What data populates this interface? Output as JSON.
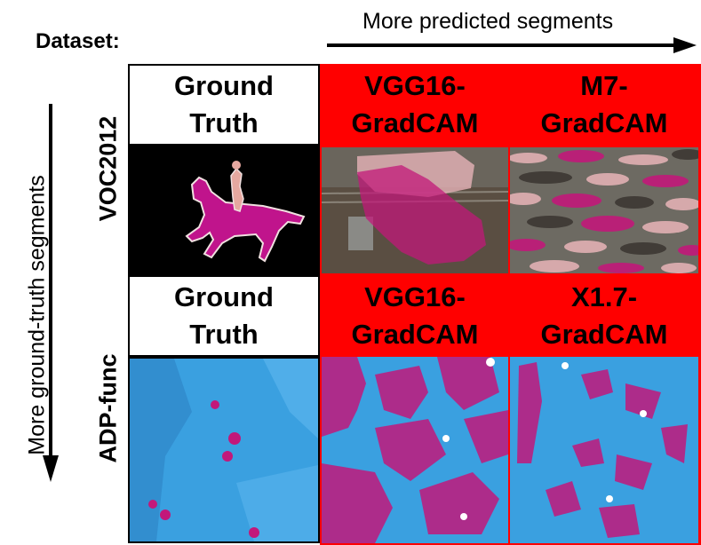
{
  "header": {
    "predicted_axis_label": "More predicted segments",
    "dataset_label": "Dataset:",
    "ground_truth_axis_label": "More ground-truth segments"
  },
  "rows": [
    {
      "dataset": "VOC2012",
      "ground_truth_line1": "Ground",
      "ground_truth_line2": "Truth",
      "method1_line1": "VGG16-",
      "method1_line2": "GradCAM",
      "method2_line1": "M7-",
      "method2_line2": "GradCAM"
    },
    {
      "dataset": "ADP-func",
      "ground_truth_line1": "Ground",
      "ground_truth_line2": "Truth",
      "method1_line1": "VGG16-",
      "method1_line2": "GradCAM",
      "method2_line1": "X1.7-",
      "method2_line2": "GradCAM"
    }
  ],
  "colors": {
    "highlight_red": "#ff0000",
    "segment_magenta": "#c2187a",
    "tissue_blue": "#3aa0e0",
    "horse_gt": "#c0148c",
    "rider_gt": "#e6a8a0"
  }
}
